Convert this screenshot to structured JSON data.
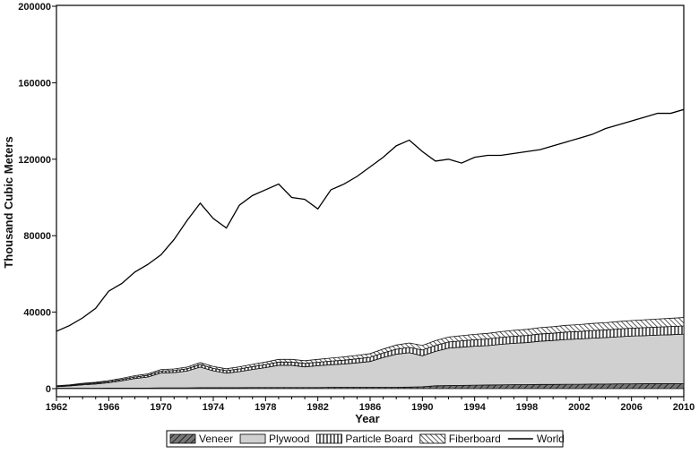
{
  "chart_data": {
    "type": "area",
    "title": "",
    "xlabel": "Year",
    "ylabel": "Thousand Cubic Meters",
    "xlim": [
      1962,
      2010
    ],
    "ylim": [
      0,
      200000
    ],
    "xticks": [
      1962,
      1966,
      1970,
      1974,
      1978,
      1982,
      1986,
      1990,
      1994,
      1998,
      2002,
      2006,
      2010
    ],
    "yticks": [
      0,
      40000,
      80000,
      120000,
      160000,
      200000
    ],
    "grid": false,
    "legend_position": "bottom",
    "x": [
      1962,
      1963,
      1964,
      1965,
      1966,
      1967,
      1968,
      1969,
      1970,
      1971,
      1972,
      1973,
      1974,
      1975,
      1976,
      1977,
      1978,
      1979,
      1980,
      1981,
      1982,
      1983,
      1984,
      1985,
      1986,
      1987,
      1988,
      1989,
      1990,
      1991,
      1992,
      1993,
      1994,
      1995,
      1996,
      1997,
      1998,
      1999,
      2000,
      2001,
      2002,
      2003,
      2004,
      2005,
      2006,
      2007,
      2008,
      2009,
      2010
    ],
    "series": [
      {
        "name": "Veneer",
        "kind": "stacked-area",
        "fill": "#555555",
        "pattern": "diagonal",
        "values": [
          200,
          200,
          200,
          200,
          300,
          300,
          300,
          300,
          400,
          400,
          400,
          500,
          500,
          500,
          500,
          600,
          600,
          600,
          600,
          600,
          600,
          700,
          700,
          700,
          700,
          700,
          700,
          800,
          1000,
          1500,
          1600,
          1700,
          1800,
          1900,
          2000,
          2100,
          2100,
          2200,
          2200,
          2300,
          2300,
          2400,
          2400,
          2500,
          2500,
          2600,
          2600,
          2600,
          2700
        ]
      },
      {
        "name": "Plywood",
        "kind": "stacked-area",
        "fill": "#d0d0d0",
        "pattern": "solid",
        "values": [
          800,
          1200,
          1800,
          2200,
          2800,
          3800,
          5000,
          5800,
          7800,
          8000,
          8800,
          10800,
          8800,
          7600,
          8400,
          9400,
          10400,
          11600,
          11600,
          10800,
          11400,
          11800,
          12200,
          12800,
          13500,
          15600,
          17300,
          18000,
          16200,
          18000,
          19600,
          20000,
          20400,
          20600,
          21200,
          21600,
          22000,
          22600,
          23000,
          23400,
          23700,
          24000,
          24300,
          24600,
          25000,
          25100,
          25400,
          25600,
          25800
        ]
      },
      {
        "name": "Particle Board",
        "kind": "stacked-area",
        "fill": "#ffffff",
        "pattern": "vertical",
        "values": [
          200,
          300,
          400,
          500,
          600,
          700,
          800,
          900,
          1000,
          1100,
          1200,
          1300,
          1300,
          1300,
          1400,
          1500,
          1600,
          1700,
          1700,
          1800,
          1800,
          1900,
          2000,
          2100,
          2200,
          2400,
          2600,
          2800,
          3000,
          3100,
          3200,
          3300,
          3400,
          3500,
          3600,
          3700,
          3700,
          3800,
          3800,
          3900,
          3900,
          4000,
          4000,
          4100,
          4100,
          4200,
          4200,
          4300,
          4300
        ]
      },
      {
        "name": "Fiberboard",
        "kind": "stacked-area",
        "fill": "#888888",
        "pattern": "diagonal-dense",
        "values": [
          300,
          300,
          400,
          400,
          500,
          600,
          700,
          700,
          800,
          800,
          900,
          1000,
          1000,
          1000,
          1100,
          1200,
          1300,
          1400,
          1400,
          1400,
          1500,
          1600,
          1700,
          1800,
          1900,
          2000,
          2200,
          2300,
          2400,
          2500,
          2600,
          2700,
          2800,
          2900,
          3000,
          3100,
          3200,
          3300,
          3400,
          3500,
          3600,
          3700,
          3800,
          3900,
          4000,
          4100,
          4200,
          4300,
          4400
        ]
      },
      {
        "name": "World",
        "kind": "line",
        "stroke": "#000000",
        "values": [
          30000,
          33000,
          37000,
          42000,
          51000,
          55000,
          61000,
          65000,
          70000,
          78000,
          88000,
          97000,
          89000,
          84000,
          96000,
          101000,
          104000,
          107000,
          100000,
          99000,
          94000,
          104000,
          107000,
          111000,
          116000,
          121000,
          127000,
          130000,
          124000,
          119000,
          120000,
          118000,
          121000,
          122000,
          122000,
          123000,
          124000,
          125000,
          127000,
          129000,
          131000,
          133000,
          136000,
          138000,
          140000,
          142000,
          144000,
          144000,
          146000
        ]
      }
    ]
  }
}
